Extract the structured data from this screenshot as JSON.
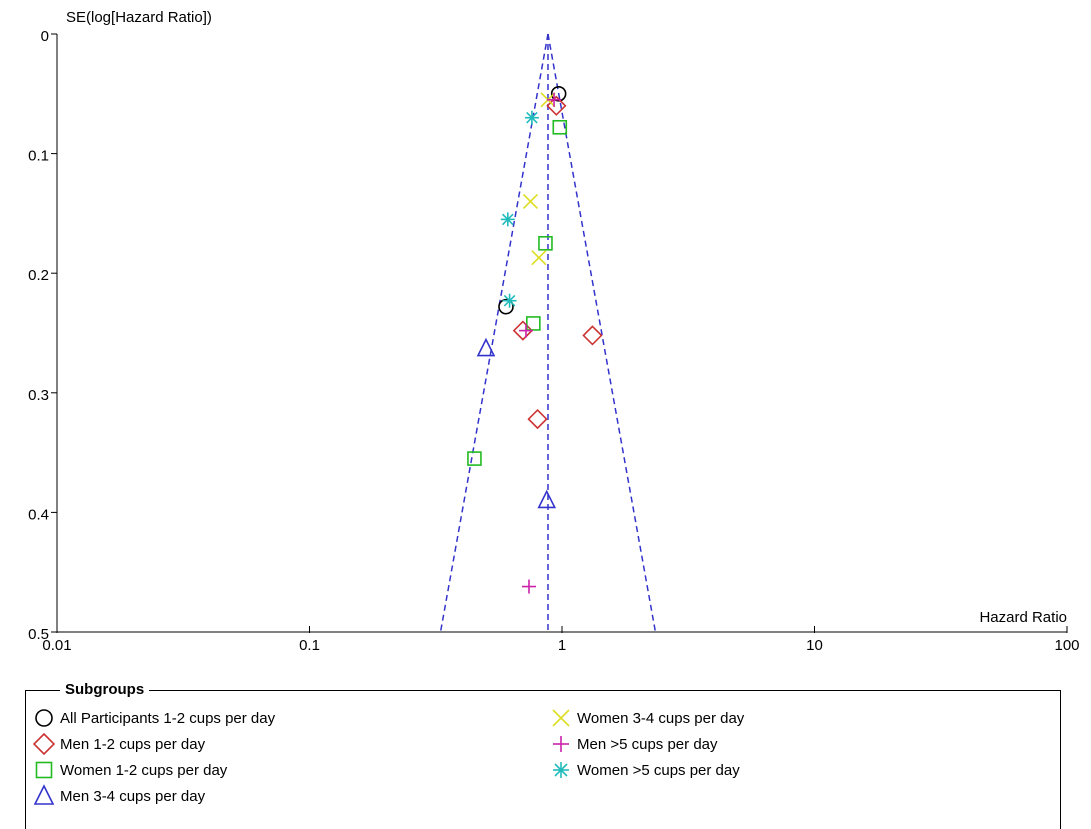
{
  "chart_data": {
    "type": "scatter",
    "subtype": "funnel-plot",
    "x_scale": "log",
    "xlabel": "Hazard Ratio",
    "ylabel": "SE(log[Hazard Ratio])",
    "xlim": [
      0.01,
      100
    ],
    "ylim": [
      0,
      0.5
    ],
    "y_inverted": true,
    "x_ticks": [
      "0.01",
      "0.1",
      "1",
      "10",
      "100"
    ],
    "y_ticks": [
      "0",
      "0.1",
      "0.2",
      "0.3",
      "0.4",
      "0.5"
    ],
    "pooled_estimate": 0.88,
    "funnel_color": "#3333cc",
    "legend_title": "Subgroups",
    "series": [
      {
        "name": "All Participants 1-2 cups per day",
        "marker": "circle",
        "color": "#000000",
        "points": [
          [
            0.97,
            0.05
          ],
          [
            0.6,
            0.228
          ]
        ]
      },
      {
        "name": "Men 1-2 cups per day",
        "marker": "diamond",
        "color": "#cc3333",
        "points": [
          [
            0.95,
            0.06
          ],
          [
            0.7,
            0.248
          ],
          [
            1.32,
            0.252
          ],
          [
            0.8,
            0.322
          ]
        ]
      },
      {
        "name": "Women 1-2 cups per day",
        "marker": "square",
        "color": "#22bb22",
        "points": [
          [
            0.98,
            0.078
          ],
          [
            0.86,
            0.175
          ],
          [
            0.77,
            0.242
          ],
          [
            0.45,
            0.355
          ]
        ]
      },
      {
        "name": "Men 3-4 cups per day",
        "marker": "triangle",
        "color": "#3333cc",
        "points": [
          [
            0.5,
            0.263
          ],
          [
            0.87,
            0.39
          ]
        ]
      },
      {
        "name": "Women 3-4 cups per day",
        "marker": "x",
        "color": "#dddd22",
        "points": [
          [
            0.88,
            0.055
          ],
          [
            0.75,
            0.14
          ],
          [
            0.81,
            0.187
          ]
        ]
      },
      {
        "name": "Men >5 cups per day",
        "marker": "plus",
        "color": "#cc22aa",
        "points": [
          [
            0.93,
            0.055
          ],
          [
            0.72,
            0.248
          ],
          [
            0.74,
            0.462
          ]
        ]
      },
      {
        "name": "Women >5 cups per day",
        "marker": "asterisk",
        "color": "#22bbbb",
        "points": [
          [
            0.76,
            0.07
          ],
          [
            0.61,
            0.155
          ],
          [
            0.62,
            0.223
          ]
        ]
      }
    ]
  }
}
